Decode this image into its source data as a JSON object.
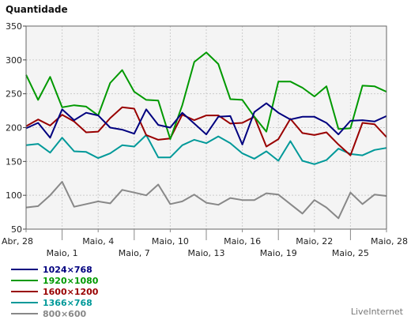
{
  "chart_data": {
    "type": "line",
    "title": "Quantidade",
    "xlabel": "",
    "ylabel": "",
    "ylim": [
      50,
      350
    ],
    "yticks": [
      50,
      100,
      150,
      200,
      250,
      300,
      350
    ],
    "grid": true,
    "x": [
      "Abr, 28",
      "Abr, 29",
      "Abr, 30",
      "Maio, 1",
      "Maio, 2",
      "Maio, 3",
      "Maio, 4",
      "Maio, 5",
      "Maio, 6",
      "Maio, 7",
      "Maio, 8",
      "Maio, 9",
      "Maio, 10",
      "Maio, 11",
      "Maio, 12",
      "Maio, 13",
      "Maio, 14",
      "Maio, 15",
      "Maio, 16",
      "Maio, 17",
      "Maio, 18",
      "Maio, 19",
      "Maio, 20",
      "Maio, 21",
      "Maio, 22",
      "Maio, 23",
      "Maio, 24",
      "Maio, 25",
      "Maio, 26",
      "Maio, 27",
      "Maio, 28"
    ],
    "xtick_labels": [
      {
        "index": 0,
        "label": "Abr, 28",
        "row": 0
      },
      {
        "index": 3,
        "label": "Maio, 1",
        "row": 1
      },
      {
        "index": 6,
        "label": "Maio, 4",
        "row": 0
      },
      {
        "index": 9,
        "label": "Maio, 7",
        "row": 1
      },
      {
        "index": 12,
        "label": "Maio, 10",
        "row": 0
      },
      {
        "index": 15,
        "label": "Maio, 13",
        "row": 1
      },
      {
        "index": 18,
        "label": "Maio, 16",
        "row": 0
      },
      {
        "index": 21,
        "label": "Maio, 19",
        "row": 1
      },
      {
        "index": 24,
        "label": "Maio, 22",
        "row": 0
      },
      {
        "index": 27,
        "label": "Maio, 25",
        "row": 1
      },
      {
        "index": 30,
        "label": "Maio, 28",
        "row": 0
      }
    ],
    "series": [
      {
        "name": "1024×768",
        "color": "#00007f",
        "values": [
          199,
          207,
          185,
          227,
          211,
          222,
          218,
          200,
          197,
          191,
          227,
          204,
          200,
          222,
          206,
          190,
          216,
          217,
          175,
          223,
          236,
          222,
          212,
          216,
          216,
          207,
          190,
          210,
          211,
          209,
          217
        ]
      },
      {
        "name": "1920×1080",
        "color": "#009900",
        "values": [
          278,
          241,
          275,
          230,
          233,
          231,
          218,
          266,
          285,
          253,
          241,
          240,
          183,
          233,
          297,
          311,
          294,
          242,
          241,
          216,
          194,
          268,
          268,
          259,
          246,
          261,
          198,
          199,
          262,
          261,
          253
        ]
      },
      {
        "name": "1600×1200",
        "color": "#990000",
        "values": [
          202,
          212,
          203,
          219,
          209,
          193,
          194,
          214,
          230,
          228,
          189,
          182,
          184,
          219,
          211,
          218,
          218,
          206,
          207,
          216,
          172,
          183,
          213,
          192,
          189,
          193,
          175,
          159,
          207,
          205,
          186
        ]
      },
      {
        "name": "1366×768",
        "color": "#009999",
        "values": [
          174,
          176,
          163,
          185,
          165,
          164,
          155,
          162,
          174,
          172,
          189,
          156,
          156,
          174,
          182,
          177,
          187,
          177,
          162,
          154,
          165,
          151,
          180,
          151,
          146,
          152,
          169,
          161,
          159,
          167,
          170
        ]
      },
      {
        "name": "800×600",
        "color": "#888888",
        "values": [
          82,
          84,
          100,
          120,
          83,
          87,
          91,
          88,
          108,
          104,
          100,
          116,
          87,
          91,
          101,
          89,
          86,
          96,
          93,
          93,
          103,
          101,
          87,
          73,
          93,
          82,
          66,
          104,
          87,
          101,
          99
        ]
      }
    ]
  },
  "credit": "LiveInternet"
}
